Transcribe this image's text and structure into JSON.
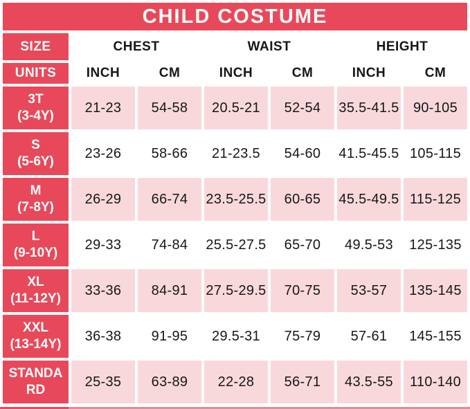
{
  "title": "CHILD COSTUME",
  "colors": {
    "header_red": "#e8495a",
    "row_pink": "#f9d8dc",
    "row_white": "#ffffff",
    "text_dark": "#161616",
    "title_text": "#ffffff",
    "bottom_strip": "#e08d96"
  },
  "header": {
    "size_label": "SIZE",
    "units_label": "UNITS",
    "groups": [
      "CHEST",
      "WAIST",
      "HEIGHT"
    ],
    "units": [
      "INCH",
      "CM",
      "INCH",
      "CM",
      "INCH",
      "CM"
    ]
  },
  "rows": [
    {
      "size": "3T",
      "age": "(3-4Y)",
      "shaded": true,
      "values": [
        "21-23",
        "54-58",
        "20.5-21",
        "52-54",
        "35.5-41.5",
        "90-105"
      ]
    },
    {
      "size": "S",
      "age": "(5-6Y)",
      "shaded": false,
      "values": [
        "23-26",
        "58-66",
        "21-23.5",
        "54-60",
        "41.5-45.5",
        "105-115"
      ]
    },
    {
      "size": "M",
      "age": "(7-8Y)",
      "shaded": true,
      "values": [
        "26-29",
        "66-74",
        "23.5-25.5",
        "60-65",
        "45.5-49.5",
        "115-125"
      ]
    },
    {
      "size": "L",
      "age": "(9-10Y)",
      "shaded": false,
      "values": [
        "29-33",
        "74-84",
        "25.5-27.5",
        "65-70",
        "49.5-53",
        "125-135"
      ]
    },
    {
      "size": "XL",
      "age": "(11-12Y)",
      "shaded": true,
      "values": [
        "33-36",
        "84-91",
        "27.5-29.5",
        "70-75",
        "53-57",
        "135-145"
      ]
    },
    {
      "size": "XXL",
      "age": "(13-14Y)",
      "shaded": false,
      "values": [
        "36-38",
        "91-95",
        "29.5-31",
        "75-79",
        "57-61",
        "145-155"
      ]
    },
    {
      "size": "STANDA",
      "age": "RD",
      "shaded": true,
      "values": [
        "25-35",
        "63-89",
        "22-28",
        "56-71",
        "43.5-55",
        "110-140"
      ]
    }
  ],
  "chart_data": {
    "type": "table",
    "title": "CHILD COSTUME",
    "column_groups": [
      "CHEST",
      "WAIST",
      "HEIGHT"
    ],
    "columns": [
      "SIZE",
      "CHEST INCH",
      "CHEST CM",
      "WAIST INCH",
      "WAIST CM",
      "HEIGHT INCH",
      "HEIGHT CM"
    ],
    "rows": [
      [
        "3T (3-4Y)",
        "21-23",
        "54-58",
        "20.5-21",
        "52-54",
        "35.5-41.5",
        "90-105"
      ],
      [
        "S (5-6Y)",
        "23-26",
        "58-66",
        "21-23.5",
        "54-60",
        "41.5-45.5",
        "105-115"
      ],
      [
        "M (7-8Y)",
        "26-29",
        "66-74",
        "23.5-25.5",
        "60-65",
        "45.5-49.5",
        "115-125"
      ],
      [
        "L (9-10Y)",
        "29-33",
        "74-84",
        "25.5-27.5",
        "65-70",
        "49.5-53",
        "125-135"
      ],
      [
        "XL (11-12Y)",
        "33-36",
        "84-91",
        "27.5-29.5",
        "70-75",
        "53-57",
        "135-145"
      ],
      [
        "XXL (13-14Y)",
        "36-38",
        "91-95",
        "29.5-31",
        "75-79",
        "57-61",
        "145-155"
      ],
      [
        "STANDARD",
        "25-35",
        "63-89",
        "22-28",
        "56-71",
        "43.5-55",
        "110-140"
      ]
    ]
  }
}
